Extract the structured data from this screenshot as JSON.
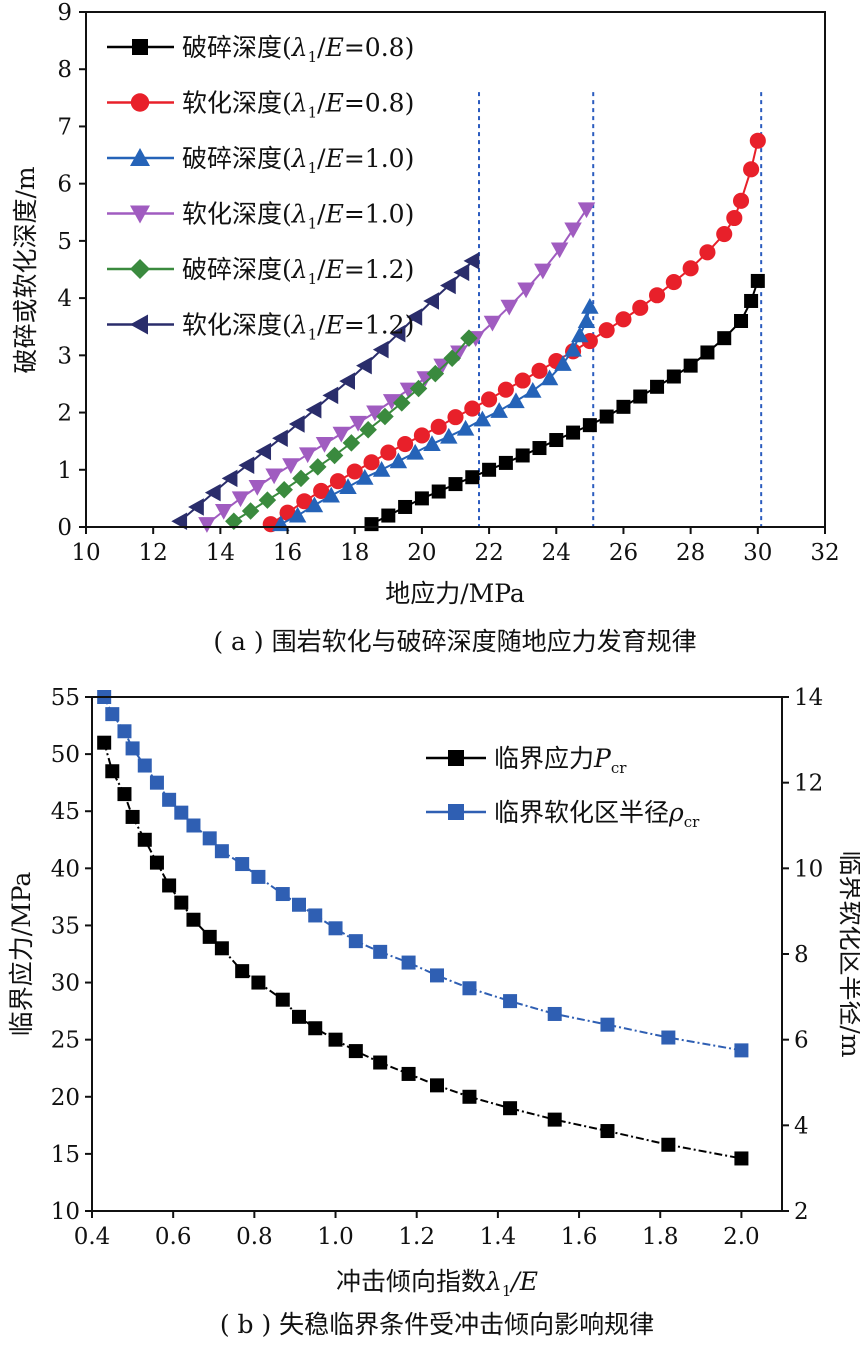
{
  "chart_data": [
    {
      "type": "line",
      "caption": "( a ) 围岩软化与破碎深度随地应力发育规律",
      "xlabel": "地应力/MPa",
      "ylabel": "破碎或软化深度/m",
      "xlim": [
        10,
        32
      ],
      "ylim": [
        0,
        9
      ],
      "xticks": [
        "10",
        "12",
        "14",
        "16",
        "18",
        "20",
        "22",
        "24",
        "26",
        "28",
        "30",
        "32"
      ],
      "yticks": [
        "0",
        "1",
        "2",
        "3",
        "4",
        "5",
        "6",
        "7",
        "8",
        "9"
      ],
      "grid": false,
      "legend_position": "top-left",
      "critical_lines": [
        21.7,
        25.1,
        30.1
      ],
      "series": [
        {
          "name": "破碎深度(λ1/E=0.8)",
          "color": "#000000",
          "marker": "square",
          "points": [
            [
              18.5,
              0.05
            ],
            [
              19.0,
              0.2
            ],
            [
              19.5,
              0.35
            ],
            [
              20.0,
              0.5
            ],
            [
              20.5,
              0.62
            ],
            [
              21.0,
              0.75
            ],
            [
              21.5,
              0.87
            ],
            [
              22.0,
              1.0
            ],
            [
              22.5,
              1.12
            ],
            [
              23.0,
              1.25
            ],
            [
              23.5,
              1.38
            ],
            [
              24.0,
              1.52
            ],
            [
              24.5,
              1.65
            ],
            [
              25.0,
              1.78
            ],
            [
              25.5,
              1.93
            ],
            [
              26.0,
              2.1
            ],
            [
              26.5,
              2.28
            ],
            [
              27.0,
              2.45
            ],
            [
              27.5,
              2.63
            ],
            [
              28.0,
              2.82
            ],
            [
              28.5,
              3.05
            ],
            [
              29.0,
              3.3
            ],
            [
              29.5,
              3.6
            ],
            [
              29.8,
              3.95
            ],
            [
              30.0,
              4.3
            ]
          ]
        },
        {
          "name": "软化深度(λ1/E=0.8)",
          "color": "#e8202a",
          "marker": "circle",
          "points": [
            [
              15.5,
              0.05
            ],
            [
              16.0,
              0.25
            ],
            [
              16.5,
              0.45
            ],
            [
              17.0,
              0.63
            ],
            [
              17.5,
              0.8
            ],
            [
              18.0,
              0.97
            ],
            [
              18.5,
              1.13
            ],
            [
              19.0,
              1.3
            ],
            [
              19.5,
              1.45
            ],
            [
              20.0,
              1.6
            ],
            [
              20.5,
              1.75
            ],
            [
              21.0,
              1.92
            ],
            [
              21.5,
              2.07
            ],
            [
              22.0,
              2.23
            ],
            [
              22.5,
              2.4
            ],
            [
              23.0,
              2.56
            ],
            [
              23.5,
              2.73
            ],
            [
              24.0,
              2.9
            ],
            [
              24.5,
              3.07
            ],
            [
              25.0,
              3.25
            ],
            [
              25.5,
              3.44
            ],
            [
              26.0,
              3.63
            ],
            [
              26.5,
              3.83
            ],
            [
              27.0,
              4.05
            ],
            [
              27.5,
              4.28
            ],
            [
              28.0,
              4.52
            ],
            [
              28.5,
              4.8
            ],
            [
              29.0,
              5.12
            ],
            [
              29.3,
              5.4
            ],
            [
              29.5,
              5.7
            ],
            [
              29.8,
              6.25
            ],
            [
              30.0,
              6.75
            ]
          ]
        },
        {
          "name": "破碎深度(λ1/E=1.0)",
          "color": "#2563b8",
          "marker": "triangle-up",
          "points": [
            [
              15.8,
              0.05
            ],
            [
              16.3,
              0.2
            ],
            [
              16.8,
              0.38
            ],
            [
              17.3,
              0.55
            ],
            [
              17.8,
              0.7
            ],
            [
              18.3,
              0.86
            ],
            [
              18.8,
              1.0
            ],
            [
              19.3,
              1.15
            ],
            [
              19.8,
              1.3
            ],
            [
              20.3,
              1.45
            ],
            [
              20.8,
              1.58
            ],
            [
              21.3,
              1.72
            ],
            [
              21.8,
              1.88
            ],
            [
              22.3,
              2.03
            ],
            [
              22.8,
              2.2
            ],
            [
              23.3,
              2.38
            ],
            [
              23.8,
              2.6
            ],
            [
              24.2,
              2.85
            ],
            [
              24.5,
              3.1
            ],
            [
              24.7,
              3.35
            ],
            [
              24.9,
              3.6
            ],
            [
              25.0,
              3.85
            ]
          ]
        },
        {
          "name": "软化深度(λ1/E=1.0)",
          "color": "#a05cc0",
          "marker": "triangle-down",
          "points": [
            [
              13.6,
              0.05
            ],
            [
              14.1,
              0.28
            ],
            [
              14.6,
              0.5
            ],
            [
              15.1,
              0.7
            ],
            [
              15.6,
              0.9
            ],
            [
              16.1,
              1.08
            ],
            [
              16.6,
              1.27
            ],
            [
              17.1,
              1.45
            ],
            [
              17.6,
              1.63
            ],
            [
              18.1,
              1.82
            ],
            [
              18.6,
              2.0
            ],
            [
              19.1,
              2.2
            ],
            [
              19.6,
              2.4
            ],
            [
              20.1,
              2.6
            ],
            [
              20.6,
              2.82
            ],
            [
              21.1,
              3.05
            ],
            [
              21.6,
              3.3
            ],
            [
              22.1,
              3.57
            ],
            [
              22.6,
              3.85
            ],
            [
              23.1,
              4.15
            ],
            [
              23.6,
              4.48
            ],
            [
              24.1,
              4.85
            ],
            [
              24.5,
              5.2
            ],
            [
              24.9,
              5.55
            ]
          ]
        },
        {
          "name": "破碎深度(λ1/E=1.2)",
          "color": "#3a8a3e",
          "marker": "diamond",
          "points": [
            [
              14.4,
              0.1
            ],
            [
              14.9,
              0.28
            ],
            [
              15.4,
              0.47
            ],
            [
              15.9,
              0.65
            ],
            [
              16.4,
              0.85
            ],
            [
              16.9,
              1.05
            ],
            [
              17.4,
              1.25
            ],
            [
              17.9,
              1.47
            ],
            [
              18.4,
              1.7
            ],
            [
              18.9,
              1.93
            ],
            [
              19.4,
              2.17
            ],
            [
              19.9,
              2.42
            ],
            [
              20.4,
              2.68
            ],
            [
              20.9,
              2.95
            ],
            [
              21.4,
              3.3
            ]
          ]
        },
        {
          "name": "软化深度(λ1/E=1.2)",
          "color": "#2a2d6b",
          "marker": "triangle-left",
          "points": [
            [
              12.8,
              0.1
            ],
            [
              13.3,
              0.35
            ],
            [
              13.8,
              0.6
            ],
            [
              14.3,
              0.85
            ],
            [
              14.8,
              1.08
            ],
            [
              15.3,
              1.32
            ],
            [
              15.8,
              1.55
            ],
            [
              16.3,
              1.8
            ],
            [
              16.8,
              2.05
            ],
            [
              17.3,
              2.3
            ],
            [
              17.8,
              2.55
            ],
            [
              18.3,
              2.82
            ],
            [
              18.8,
              3.1
            ],
            [
              19.3,
              3.38
            ],
            [
              19.8,
              3.67
            ],
            [
              20.3,
              3.95
            ],
            [
              20.8,
              4.22
            ],
            [
              21.2,
              4.45
            ],
            [
              21.5,
              4.65
            ]
          ]
        }
      ]
    },
    {
      "type": "line",
      "caption": "( b ) 失稳临界条件受冲击倾向影响规律",
      "xlabel_main": "冲击倾向指数",
      "xlabel_symbol": "λ",
      "xlabel_sub": "1",
      "xlabel_tail": "/E",
      "ylabel_left": "临界应力/MPa",
      "ylabel_right": "临界软化区半径/m",
      "xlim": [
        0.4,
        2.1
      ],
      "ylim_left": [
        10,
        55
      ],
      "ylim_right": [
        2,
        14
      ],
      "xticks": [
        "0.4",
        "0.6",
        "0.8",
        "1.0",
        "1.2",
        "1.4",
        "1.6",
        "1.8",
        "2.0"
      ],
      "yticks_left": [
        "10",
        "15",
        "20",
        "25",
        "30",
        "35",
        "40",
        "45",
        "50",
        "55"
      ],
      "yticks_right": [
        "2",
        "4",
        "6",
        "8",
        "10",
        "12",
        "14"
      ],
      "grid": false,
      "legend_position": "top-right",
      "legend": [
        {
          "name_main": "临界应力",
          "name_symbol": "P",
          "name_sub": "cr"
        },
        {
          "name_main": "临界软化区半径",
          "name_symbol": "ρ",
          "name_sub": "cr"
        }
      ],
      "series": [
        {
          "name": "临界应力Pcr",
          "axis": "left",
          "color": "#000000",
          "marker": "square",
          "x": [
            0.43,
            0.45,
            0.48,
            0.5,
            0.53,
            0.56,
            0.59,
            0.62,
            0.65,
            0.69,
            0.72,
            0.77,
            0.81,
            0.87,
            0.91,
            0.95,
            1.0,
            1.05,
            1.11,
            1.18,
            1.25,
            1.33,
            1.43,
            1.54,
            1.67,
            1.82,
            2.0
          ],
          "y": [
            51.0,
            48.5,
            46.5,
            44.5,
            42.5,
            40.5,
            38.5,
            37.0,
            35.5,
            34.0,
            33.0,
            31.0,
            30.0,
            28.5,
            27.0,
            26.0,
            25.0,
            24.0,
            23.0,
            22.0,
            21.0,
            20.0,
            19.0,
            18.0,
            17.0,
            15.8,
            14.6
          ]
        },
        {
          "name": "临界软化区半径ρcr",
          "axis": "right",
          "color": "#2f5fb3",
          "marker": "square",
          "x": [
            0.43,
            0.45,
            0.48,
            0.5,
            0.53,
            0.56,
            0.59,
            0.62,
            0.65,
            0.69,
            0.72,
            0.77,
            0.81,
            0.87,
            0.91,
            0.95,
            1.0,
            1.05,
            1.11,
            1.18,
            1.25,
            1.33,
            1.43,
            1.54,
            1.67,
            1.82,
            2.0
          ],
          "y": [
            14.0,
            13.6,
            13.2,
            12.8,
            12.4,
            12.0,
            11.6,
            11.3,
            11.0,
            10.7,
            10.4,
            10.1,
            9.8,
            9.4,
            9.15,
            8.9,
            8.6,
            8.3,
            8.05,
            7.8,
            7.5,
            7.2,
            6.9,
            6.6,
            6.35,
            6.05,
            5.75
          ]
        }
      ]
    }
  ]
}
